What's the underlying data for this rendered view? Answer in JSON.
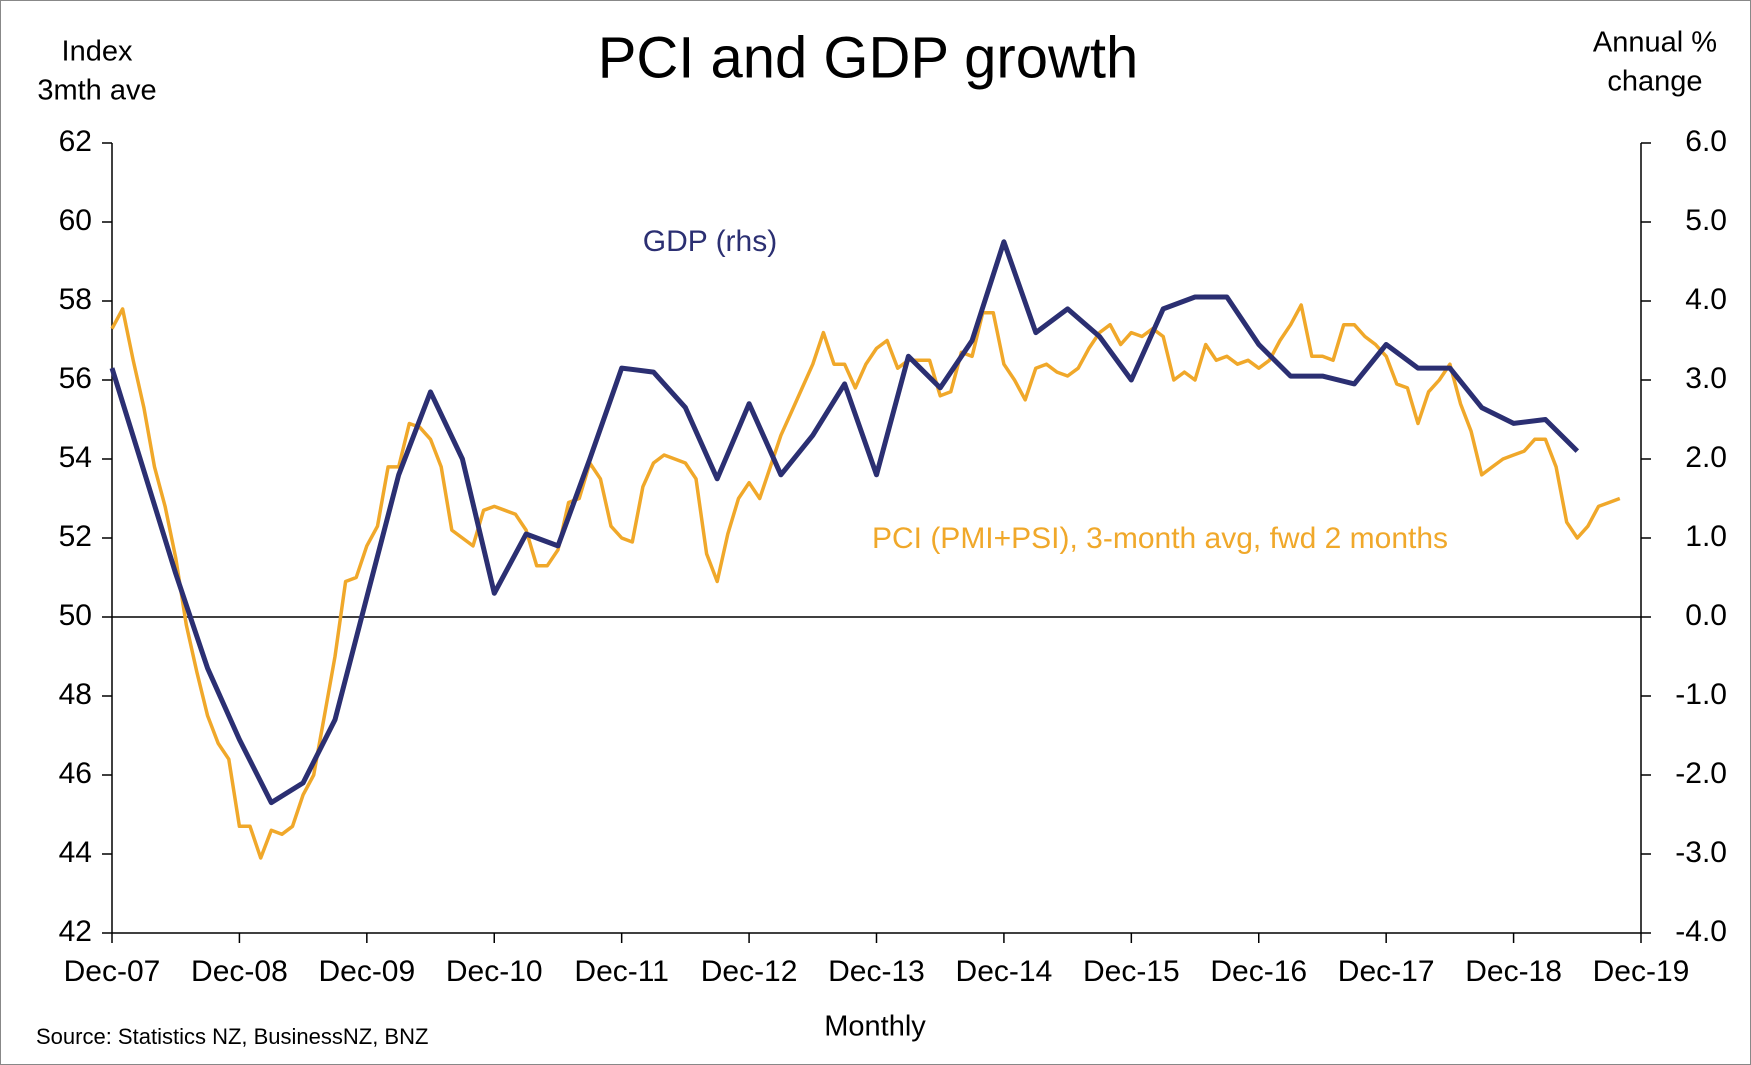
{
  "chart_data": {
    "type": "line",
    "title": "PCI and GDP growth",
    "ylabel": [
      "Index",
      "3mth ave"
    ],
    "y2label": [
      "Annual %",
      "change"
    ],
    "xlabel": "Monthly",
    "source": "Source: Statistics NZ, BusinessNZ, BNZ",
    "xlim": [
      0,
      144
    ],
    "xticks": [
      {
        "value": 0,
        "label": "Dec-07"
      },
      {
        "value": 12,
        "label": "Dec-08"
      },
      {
        "value": 24,
        "label": "Dec-09"
      },
      {
        "value": 36,
        "label": "Dec-10"
      },
      {
        "value": 48,
        "label": "Dec-11"
      },
      {
        "value": 60,
        "label": "Dec-12"
      },
      {
        "value": 72,
        "label": "Dec-13"
      },
      {
        "value": 84,
        "label": "Dec-14"
      },
      {
        "value": 96,
        "label": "Dec-15"
      },
      {
        "value": 108,
        "label": "Dec-16"
      },
      {
        "value": 120,
        "label": "Dec-17"
      },
      {
        "value": 132,
        "label": "Dec-18"
      },
      {
        "value": 144,
        "label": "Dec-19"
      }
    ],
    "ylim": [
      42,
      62
    ],
    "yticks": [
      42,
      44,
      46,
      48,
      50,
      52,
      54,
      56,
      58,
      60,
      62
    ],
    "y2lim": [
      -4,
      6
    ],
    "y2ticks": [
      {
        "value": -4,
        "label": "-4.0"
      },
      {
        "value": -3,
        "label": "-3.0"
      },
      {
        "value": -2,
        "label": "-2.0"
      },
      {
        "value": -1,
        "label": "-1.0"
      },
      {
        "value": 0,
        "label": "0.0"
      },
      {
        "value": 1,
        "label": "1.0"
      },
      {
        "value": 2,
        "label": "2.0"
      },
      {
        "value": 3,
        "label": "3.0"
      },
      {
        "value": 4,
        "label": "4.0"
      },
      {
        "value": 5,
        "label": "5.0"
      },
      {
        "value": 6,
        "label": "6.0"
      }
    ],
    "reference_line": {
      "axis": "y",
      "value": 50
    },
    "grid": false,
    "series": [
      {
        "name": "PCI (PMI+PSI), 3-month avg, fwd 2 months",
        "color": "#f0a82a",
        "axis": "y",
        "x": [
          0,
          1,
          2,
          3,
          4,
          5,
          6,
          7,
          8,
          9,
          10,
          11,
          12,
          13,
          14,
          15,
          16,
          17,
          18,
          19,
          20,
          21,
          22,
          23,
          24,
          25,
          26,
          27,
          28,
          29,
          30,
          31,
          32,
          33,
          34,
          35,
          36,
          37,
          38,
          39,
          40,
          41,
          42,
          43,
          44,
          45,
          46,
          47,
          48,
          49,
          50,
          51,
          52,
          53,
          54,
          55,
          56,
          57,
          58,
          59,
          60,
          61,
          62,
          63,
          64,
          65,
          66,
          67,
          68,
          69,
          70,
          71,
          72,
          73,
          74,
          75,
          76,
          77,
          78,
          79,
          80,
          81,
          82,
          83,
          84,
          85,
          86,
          87,
          88,
          89,
          90,
          91,
          92,
          93,
          94,
          95,
          96,
          97,
          98,
          99,
          100,
          101,
          102,
          103,
          104,
          105,
          106,
          107,
          108,
          109,
          110,
          111,
          112,
          113,
          114,
          115,
          116,
          117,
          118,
          119,
          120,
          121,
          122,
          123,
          124,
          125,
          126,
          127,
          128,
          129,
          130,
          131,
          132,
          133,
          134,
          135,
          136,
          137,
          138,
          139,
          140,
          141,
          142
        ],
        "values": [
          57.3,
          57.8,
          56.5,
          55.3,
          53.8,
          52.8,
          51.5,
          49.8,
          48.6,
          47.5,
          46.8,
          46.4,
          44.7,
          44.7,
          43.9,
          44.6,
          44.5,
          44.7,
          45.5,
          46.0,
          47.5,
          49.0,
          50.9,
          51.0,
          51.8,
          52.3,
          53.8,
          53.8,
          54.9,
          54.8,
          54.5,
          53.8,
          52.2,
          52.0,
          51.8,
          52.7,
          52.8,
          52.7,
          52.6,
          52.2,
          51.3,
          51.3,
          51.7,
          52.9,
          53.0,
          53.9,
          53.5,
          52.3,
          52.0,
          51.9,
          53.3,
          53.9,
          54.1,
          54.0,
          53.9,
          53.5,
          51.6,
          50.9,
          52.1,
          53.0,
          53.4,
          53.0,
          53.8,
          54.6,
          55.2,
          55.8,
          56.4,
          57.2,
          56.4,
          56.4,
          55.8,
          56.4,
          56.8,
          57.0,
          56.3,
          56.5,
          56.5,
          56.5,
          55.6,
          55.7,
          56.7,
          56.6,
          57.7,
          57.7,
          56.4,
          56.0,
          55.5,
          56.3,
          56.4,
          56.2,
          56.1,
          56.3,
          56.8,
          57.2,
          57.4,
          56.9,
          57.2,
          57.1,
          57.3,
          57.1,
          56.0,
          56.2,
          56.0,
          56.9,
          56.5,
          56.6,
          56.4,
          56.5,
          56.3,
          56.5,
          57.0,
          57.4,
          57.9,
          56.6,
          56.6,
          56.5,
          57.4,
          57.4,
          57.1,
          56.9,
          56.6,
          55.9,
          55.8,
          54.9,
          55.7,
          56.0,
          56.4,
          55.4,
          54.7,
          53.6,
          53.8,
          54.0,
          54.1,
          54.2,
          54.5,
          54.5,
          53.8,
          52.4,
          52.0,
          52.3,
          52.8,
          52.9,
          53.0
        ]
      },
      {
        "name": "GDP (rhs)",
        "color": "#2b2f72",
        "axis": "y2",
        "x": [
          0,
          3,
          6,
          9,
          12,
          15,
          18,
          21,
          24,
          27,
          30,
          33,
          36,
          39,
          42,
          45,
          48,
          51,
          54,
          57,
          60,
          63,
          66,
          69,
          72,
          75,
          78,
          81,
          84,
          87,
          90,
          93,
          96,
          99,
          102,
          105,
          108,
          111,
          114,
          117,
          120,
          123,
          126,
          129,
          132,
          135,
          138
        ],
        "values": [
          3.15,
          1.85,
          0.55,
          -0.65,
          -1.55,
          -2.35,
          -2.1,
          -1.3,
          0.25,
          1.8,
          2.85,
          2.0,
          0.3,
          1.05,
          0.9,
          2.0,
          3.15,
          3.1,
          2.65,
          1.75,
          2.7,
          1.8,
          2.3,
          2.95,
          1.8,
          3.3,
          2.9,
          3.5,
          4.75,
          3.6,
          3.9,
          3.55,
          3.0,
          3.9,
          4.05,
          4.05,
          3.45,
          3.05,
          3.05,
          2.95,
          3.45,
          3.15,
          3.15,
          2.65,
          2.45,
          2.5,
          2.1
        ]
      }
    ]
  }
}
